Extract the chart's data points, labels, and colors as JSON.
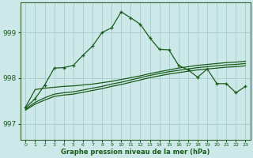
{
  "title": "Graphe pression niveau de la mer (hPa)",
  "background_color": "#cce8e8",
  "grid_color": "#aacfcf",
  "line_color": "#1a5c1a",
  "xlim": [
    -0.5,
    23.5
  ],
  "ylim": [
    996.65,
    999.65
  ],
  "yticks": [
    997,
    998,
    999
  ],
  "xticks": [
    0,
    1,
    2,
    3,
    4,
    5,
    6,
    7,
    8,
    9,
    10,
    11,
    12,
    13,
    14,
    15,
    16,
    17,
    18,
    19,
    20,
    21,
    22,
    23
  ],
  "x": [
    0,
    1,
    2,
    3,
    4,
    5,
    6,
    7,
    8,
    9,
    10,
    11,
    12,
    13,
    14,
    15,
    16,
    17,
    18,
    19,
    20,
    21,
    22,
    23
  ],
  "line_main": [
    997.35,
    997.55,
    997.85,
    998.22,
    998.23,
    998.28,
    998.5,
    998.7,
    999.0,
    999.1,
    999.45,
    999.32,
    999.18,
    998.88,
    998.63,
    998.62,
    998.28,
    998.18,
    998.02,
    998.2,
    997.88,
    997.88,
    997.68,
    997.82
  ],
  "line_flat1": [
    997.37,
    997.75,
    997.78,
    997.8,
    997.82,
    997.83,
    997.85,
    997.87,
    997.9,
    997.93,
    997.97,
    998.01,
    998.05,
    998.1,
    998.14,
    998.18,
    998.22,
    998.25,
    998.28,
    998.3,
    998.32,
    998.34,
    998.35,
    998.37
  ],
  "line_flat2": [
    997.32,
    997.47,
    997.57,
    997.65,
    997.68,
    997.7,
    997.74,
    997.78,
    997.82,
    997.87,
    997.91,
    997.96,
    998.01,
    998.06,
    998.1,
    998.14,
    998.17,
    998.2,
    998.23,
    998.25,
    998.27,
    998.29,
    998.3,
    998.32
  ],
  "line_flat3": [
    997.3,
    997.43,
    997.52,
    997.6,
    997.63,
    997.65,
    997.69,
    997.73,
    997.77,
    997.82,
    997.86,
    997.91,
    997.96,
    998.01,
    998.05,
    998.09,
    998.12,
    998.15,
    998.18,
    998.2,
    998.22,
    998.24,
    998.25,
    998.27
  ]
}
